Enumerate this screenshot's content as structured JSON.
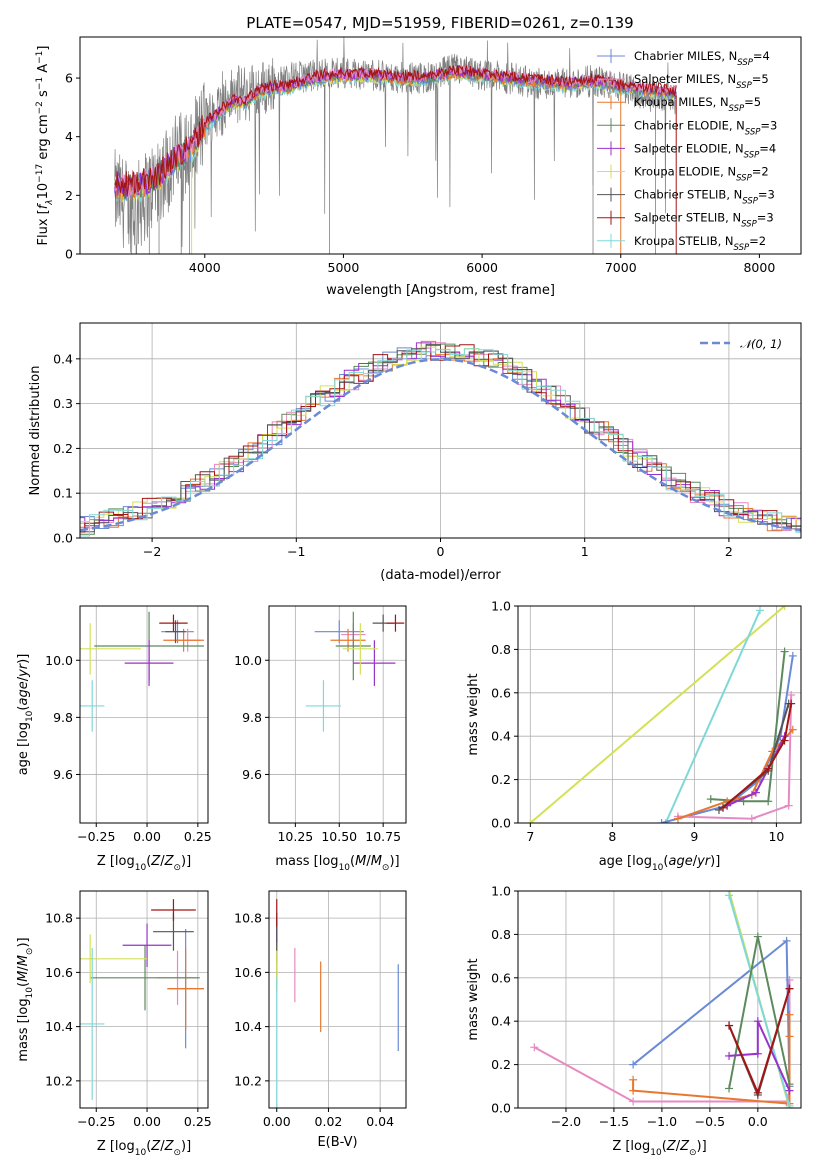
{
  "page": {
    "title": "PLATE=0547, MJD=51959, FIBERID=0261, z=0.139"
  },
  "colors": {
    "chabrier_miles": "#6a8ad6",
    "salpeter_miles": "#e78ac3",
    "kroupa_miles": "#e8772e",
    "chabrier_elodie": "#5d8a5d",
    "salpeter_elodie": "#9932cc",
    "kroupa_elodie": "#d4e157",
    "chabrier_stelib": "#555555",
    "salpeter_stelib": "#a31515",
    "kroupa_stelib": "#7fd8d8",
    "data": "#808080",
    "normal": "#6a8ad6"
  },
  "chart_data": [
    {
      "id": "spectrum",
      "type": "line",
      "title": "PLATE=0547, MJD=51959, FIBERID=0261, z=0.139",
      "xlabel": "wavelength [Angstrom, rest frame]",
      "ylabel": "Flux [f_λ 10^-17 erg cm^-2 s^-1 A^-1]",
      "xlim": [
        3100,
        8300
      ],
      "ylim": [
        0,
        7.4
      ],
      "xticks": [
        "4000",
        "5000",
        "6000",
        "7000",
        "8000"
      ],
      "yticks": [
        "0",
        "2",
        "4",
        "6"
      ],
      "legend_position": "right",
      "legend": [
        {
          "label": "Chabrier MILES, N",
          "sub": "SSP",
          "value": "=4",
          "color": "chabrier_miles"
        },
        {
          "label": "Salpeter MILES, N",
          "sub": "SSP",
          "value": "=5",
          "color": "salpeter_miles"
        },
        {
          "label": "Kroupa MILES, N",
          "sub": "SSP",
          "value": "=5",
          "color": "kroupa_miles"
        },
        {
          "label": "Chabrier ELODIE, N",
          "sub": "SSP",
          "value": "=3",
          "color": "chabrier_elodie"
        },
        {
          "label": "Salpeter ELODIE, N",
          "sub": "SSP",
          "value": "=4",
          "color": "salpeter_elodie"
        },
        {
          "label": "Kroupa ELODIE, N",
          "sub": "SSP",
          "value": "=2",
          "color": "kroupa_elodie"
        },
        {
          "label": "Chabrier STELIB, N",
          "sub": "SSP",
          "value": "=3",
          "color": "chabrier_stelib"
        },
        {
          "label": "Salpeter STELIB, N",
          "sub": "SSP",
          "value": "=3",
          "color": "salpeter_stelib"
        },
        {
          "label": "Kroupa STELIB, N",
          "sub": "SSP",
          "value": "=2",
          "color": "kroupa_stelib"
        }
      ],
      "model_continuum": [
        [
          3350,
          2.3
        ],
        [
          3500,
          2.3
        ],
        [
          3650,
          2.6
        ],
        [
          3800,
          3.3
        ],
        [
          3900,
          3.6
        ],
        [
          4000,
          4.4
        ],
        [
          4100,
          4.8
        ],
        [
          4200,
          5.2
        ],
        [
          4300,
          5.2
        ],
        [
          4400,
          5.6
        ],
        [
          4600,
          5.7
        ],
        [
          4800,
          6.0
        ],
        [
          5000,
          6.1
        ],
        [
          5200,
          6.1
        ],
        [
          5400,
          6.0
        ],
        [
          5600,
          6.0
        ],
        [
          5800,
          6.2
        ],
        [
          6000,
          6.1
        ],
        [
          6200,
          6.0
        ],
        [
          6400,
          5.9
        ],
        [
          6600,
          5.8
        ],
        [
          6800,
          5.9
        ],
        [
          7000,
          5.7
        ],
        [
          7200,
          5.6
        ],
        [
          7400,
          5.5
        ]
      ],
      "data_continuum": [
        [
          3350,
          2.0
        ],
        [
          3500,
          1.5
        ],
        [
          3650,
          2.5
        ],
        [
          3800,
          3.3
        ],
        [
          3900,
          3.5
        ],
        [
          4000,
          4.5
        ],
        [
          4100,
          4.9
        ],
        [
          4200,
          5.4
        ],
        [
          4400,
          5.6
        ],
        [
          4600,
          6.0
        ],
        [
          4800,
          6.1
        ],
        [
          5000,
          6.2
        ],
        [
          5200,
          6.1
        ],
        [
          5400,
          6.0
        ],
        [
          5600,
          6.0
        ],
        [
          5800,
          6.3
        ],
        [
          6000,
          6.1
        ],
        [
          6200,
          6.0
        ],
        [
          6400,
          5.8
        ],
        [
          6600,
          5.8
        ],
        [
          6800,
          5.9
        ],
        [
          7000,
          5.7
        ],
        [
          7200,
          5.4
        ],
        [
          7400,
          5.3
        ]
      ]
    },
    {
      "id": "residuals",
      "type": "line",
      "xlabel": "(data-model)/error",
      "ylabel": "Normed distribution",
      "xlim": [
        -2.5,
        2.5
      ],
      "ylim": [
        0,
        0.48
      ],
      "xticks": [
        -2,
        -1,
        0,
        1,
        2
      ],
      "xticklabels": [
        "−2",
        "−1",
        "0",
        "1",
        "2"
      ],
      "yticks": [
        0.0,
        0.1,
        0.2,
        0.3,
        0.4
      ],
      "yticklabels": [
        "0.0",
        "0.1",
        "0.2",
        "0.3",
        "0.4"
      ],
      "grid": true,
      "legend_position": "top-right",
      "legend": [
        {
          "label": "𝒩(0, 1)",
          "color": "normal",
          "style": "dashed"
        }
      ],
      "bin_width": 0.1
    },
    {
      "id": "age_vs_Z",
      "type": "scatter",
      "xlabel": "Z [log10(Z/Z⊙)]",
      "ylabel": "age [log10(age/yr)]",
      "xlim": [
        -0.33,
        0.3
      ],
      "ylim": [
        9.43,
        10.19
      ],
      "xticks": [
        -0.25,
        0.0,
        0.25
      ],
      "xticklabels": [
        "−0.25",
        "0.00",
        "0.25"
      ],
      "yticks": [
        9.6,
        9.8,
        10.0
      ],
      "yticklabels": [
        "9.6",
        "9.8",
        "10.0"
      ],
      "grid": true,
      "points": [
        {
          "model": "chabrier_miles",
          "x": 0.15,
          "y": 10.1,
          "xerr": 0.08,
          "yerr": 0.04
        },
        {
          "model": "salpeter_miles",
          "x": 0.2,
          "y": 10.07,
          "xerr": 0.06,
          "yerr": 0.04
        },
        {
          "model": "kroupa_miles",
          "x": 0.18,
          "y": 10.07,
          "xerr": 0.1,
          "yerr": 0.04
        },
        {
          "model": "chabrier_elodie",
          "x": 0.01,
          "y": 10.05,
          "xerr": 0.27,
          "yerr": 0.12
        },
        {
          "model": "salpeter_elodie",
          "x": 0.01,
          "y": 9.99,
          "xerr": 0.12,
          "yerr": 0.08
        },
        {
          "model": "kroupa_elodie",
          "x": -0.28,
          "y": 10.04,
          "xerr": 0.25,
          "yerr": 0.09
        },
        {
          "model": "chabrier_stelib",
          "x": 0.14,
          "y": 10.1,
          "xerr": 0.05,
          "yerr": 0.04
        },
        {
          "model": "salpeter_stelib",
          "x": 0.13,
          "y": 10.13,
          "xerr": 0.07,
          "yerr": 0.03
        },
        {
          "model": "kroupa_stelib",
          "x": -0.27,
          "y": 9.84,
          "xerr": 0.06,
          "yerr": 0.09
        }
      ]
    },
    {
      "id": "age_vs_mass",
      "type": "scatter",
      "xlabel": "mass [log10(M/M⊙)]",
      "ylabel": "",
      "xlim": [
        10.1,
        10.88
      ],
      "ylim": [
        9.43,
        10.19
      ],
      "xticks": [
        10.25,
        10.5,
        10.75
      ],
      "xticklabels": [
        "10.25",
        "10.50",
        "10.75"
      ],
      "yticks": [
        9.6,
        9.8,
        10.0
      ],
      "yticklabels": [
        "9.6",
        "9.8",
        "10.0"
      ],
      "grid": true,
      "points": [
        {
          "model": "chabrier_miles",
          "x": 10.5,
          "y": 10.1,
          "xerr": 0.14,
          "yerr": 0.04
        },
        {
          "model": "salpeter_miles",
          "x": 10.58,
          "y": 10.09,
          "xerr": 0.07,
          "yerr": 0.04
        },
        {
          "model": "kroupa_miles",
          "x": 10.55,
          "y": 10.07,
          "xerr": 0.1,
          "yerr": 0.04
        },
        {
          "model": "chabrier_elodie",
          "x": 10.58,
          "y": 10.05,
          "xerr": 0.1,
          "yerr": 0.12
        },
        {
          "model": "salpeter_elodie",
          "x": 10.7,
          "y": 9.99,
          "xerr": 0.12,
          "yerr": 0.08
        },
        {
          "model": "kroupa_elodie",
          "x": 10.62,
          "y": 10.04,
          "xerr": 0.1,
          "yerr": 0.09
        },
        {
          "model": "chabrier_stelib",
          "x": 10.75,
          "y": 10.13,
          "xerr": 0.06,
          "yerr": 0.03
        },
        {
          "model": "salpeter_stelib",
          "x": 10.82,
          "y": 10.13,
          "xerr": 0.05,
          "yerr": 0.03
        },
        {
          "model": "kroupa_stelib",
          "x": 10.41,
          "y": 9.84,
          "xerr": 0.1,
          "yerr": 0.09
        }
      ]
    },
    {
      "id": "weight_vs_age",
      "type": "line",
      "xlabel": "age [log10(age/yr)]",
      "ylabel": "mass weight",
      "xlim": [
        6.85,
        10.3
      ],
      "ylim": [
        0,
        1.0
      ],
      "xticks": [
        7,
        8,
        9,
        10
      ],
      "xticklabels": [
        "7",
        "8",
        "9",
        "10"
      ],
      "yticks": [
        0.0,
        0.2,
        0.4,
        0.6,
        0.8,
        1.0
      ],
      "yticklabels": [
        "0.0",
        "0.2",
        "0.4",
        "0.6",
        "0.8",
        "1.0"
      ],
      "grid": true,
      "series": [
        {
          "model": "kroupa_elodie",
          "x": [
            7.0,
            10.1
          ],
          "y": [
            0.0,
            1.0
          ]
        },
        {
          "model": "kroupa_stelib",
          "x": [
            8.65,
            9.8
          ],
          "y": [
            0.0,
            0.98
          ]
        },
        {
          "model": "chabrier_miles",
          "x": [
            8.6,
            9.4,
            9.8,
            10.05,
            10.2
          ],
          "y": [
            0.0,
            0.08,
            0.2,
            0.4,
            0.77
          ]
        },
        {
          "model": "chabrier_elodie",
          "x": [
            9.2,
            9.6,
            9.9,
            10.1
          ],
          "y": [
            0.11,
            0.1,
            0.1,
            0.79
          ]
        },
        {
          "model": "salpeter_miles",
          "x": [
            8.8,
            9.7,
            10.15,
            10.18
          ],
          "y": [
            0.03,
            0.02,
            0.08,
            0.59
          ]
        },
        {
          "model": "kroupa_miles",
          "x": [
            8.8,
            9.4,
            9.7,
            9.95,
            10.2
          ],
          "y": [
            0.02,
            0.1,
            0.13,
            0.33,
            0.43
          ]
        },
        {
          "model": "salpeter_elodie",
          "x": [
            9.4,
            9.75,
            9.9,
            10.1
          ],
          "y": [
            0.08,
            0.14,
            0.25,
            0.4
          ]
        },
        {
          "model": "chabrier_stelib",
          "x": [
            9.3,
            9.9,
            10.15
          ],
          "y": [
            0.06,
            0.24,
            0.55
          ]
        },
        {
          "model": "salpeter_stelib",
          "x": [
            9.35,
            9.9,
            10.1,
            10.18
          ],
          "y": [
            0.07,
            0.25,
            0.38,
            0.55
          ]
        }
      ]
    },
    {
      "id": "mass_vs_Z",
      "type": "scatter",
      "xlabel": "Z [log10(Z/Z⊙)]",
      "ylabel": "mass [log10(M/M⊙)]",
      "xlim": [
        -0.33,
        0.3
      ],
      "ylim": [
        10.1,
        10.9
      ],
      "xticks": [
        -0.25,
        0.0,
        0.25
      ],
      "xticklabels": [
        "−0.25",
        "0.00",
        "0.25"
      ],
      "yticks": [
        10.2,
        10.4,
        10.6,
        10.8
      ],
      "yticklabels": [
        "10.2",
        "10.4",
        "10.6",
        "10.8"
      ],
      "grid": true,
      "points": [
        {
          "model": "chabrier_miles",
          "x": 0.19,
          "y": 10.54,
          "xerr": 0.09,
          "yerr": 0.22
        },
        {
          "model": "salpeter_miles",
          "x": 0.15,
          "y": 10.58,
          "xerr": 0.1,
          "yerr": 0.1
        },
        {
          "model": "kroupa_miles",
          "x": 0.19,
          "y": 10.54,
          "xerr": 0.09,
          "yerr": 0.15
        },
        {
          "model": "chabrier_elodie",
          "x": -0.01,
          "y": 10.58,
          "xerr": 0.27,
          "yerr": 0.12
        },
        {
          "model": "salpeter_elodie",
          "x": 0.0,
          "y": 10.7,
          "xerr": 0.12,
          "yerr": 0.08
        },
        {
          "model": "kroupa_elodie",
          "x": -0.28,
          "y": 10.65,
          "xerr": 0.28,
          "yerr": 0.09
        },
        {
          "model": "chabrier_stelib",
          "x": 0.13,
          "y": 10.75,
          "xerr": 0.1,
          "yerr": 0.07
        },
        {
          "model": "salpeter_stelib",
          "x": 0.13,
          "y": 10.83,
          "xerr": 0.11,
          "yerr": 0.04
        },
        {
          "model": "kroupa_stelib",
          "x": -0.27,
          "y": 10.41,
          "xerr": 0.06,
          "yerr": 0.28
        }
      ]
    },
    {
      "id": "mass_vs_EBV",
      "type": "scatter",
      "xlabel": "E(B-V)",
      "ylabel": "",
      "xlim": [
        -0.003,
        0.05
      ],
      "ylim": [
        10.1,
        10.9
      ],
      "xticks": [
        0.0,
        0.02,
        0.04
      ],
      "xticklabels": [
        "0.00",
        "0.02",
        "0.04"
      ],
      "yticks": [
        10.2,
        10.4,
        10.6,
        10.8
      ],
      "yticklabels": [
        "10.2",
        "10.4",
        "10.6",
        "10.8"
      ],
      "grid": true,
      "points": [
        {
          "model": "chabrier_miles",
          "x": 0.047,
          "y": 10.47,
          "yerr": 0.16
        },
        {
          "model": "salpeter_miles",
          "x": 0.007,
          "y": 10.59,
          "yerr": 0.1
        },
        {
          "model": "kroupa_miles",
          "x": 0.017,
          "y": 10.51,
          "yerr": 0.13
        },
        {
          "model": "chabrier_elodie",
          "x": 0.0,
          "y": 10.65,
          "yerr": 0.12
        },
        {
          "model": "salpeter_elodie",
          "x": 0.0,
          "y": 10.72,
          "yerr": 0.08
        },
        {
          "model": "kroupa_elodie",
          "x": 0.0,
          "y": 10.62,
          "yerr": 0.09
        },
        {
          "model": "chabrier_stelib",
          "x": 0.0,
          "y": 10.75,
          "yerr": 0.07
        },
        {
          "model": "salpeter_stelib",
          "x": 0.0,
          "y": 10.82,
          "yerr": 0.05
        },
        {
          "model": "kroupa_stelib",
          "x": 0.0,
          "y": 10.3,
          "yerr": 0.28
        }
      ]
    },
    {
      "id": "weight_vs_Z",
      "type": "line",
      "xlabel": "Z [log10(Z/Z⊙)]",
      "ylabel": "mass weight",
      "xlim": [
        -2.5,
        0.45
      ],
      "ylim": [
        0,
        1.0
      ],
      "xticks": [
        -2.0,
        -1.5,
        -1.0,
        -0.5,
        0.0
      ],
      "xticklabels": [
        "−2.0",
        "−1.5",
        "−1.0",
        "−0.5",
        "0.0"
      ],
      "yticks": [
        0.0,
        0.2,
        0.4,
        0.6,
        0.8,
        1.0
      ],
      "yticklabels": [
        "0.0",
        "0.2",
        "0.4",
        "0.6",
        "0.8",
        "1.0"
      ],
      "grid": true,
      "series": [
        {
          "model": "salpeter_miles",
          "x": [
            -2.33,
            -1.3,
            0.3,
            0.33,
            0.33
          ],
          "y": [
            0.28,
            0.03,
            0.03,
            0.08,
            0.59
          ]
        },
        {
          "model": "chabrier_miles",
          "x": [
            -1.3,
            0.3,
            0.33,
            0.33
          ],
          "y": [
            0.2,
            0.77,
            0.1,
            0.0
          ]
        },
        {
          "model": "kroupa_miles",
          "x": [
            -1.3,
            -1.3,
            0.33,
            0.33,
            0.33
          ],
          "y": [
            0.13,
            0.08,
            0.02,
            0.33,
            0.43
          ]
        },
        {
          "model": "kroupa_elodie",
          "x": [
            -0.3,
            0.33
          ],
          "y": [
            1.0,
            0.0
          ]
        },
        {
          "model": "kroupa_stelib",
          "x": [
            -0.3,
            0.33
          ],
          "y": [
            0.98,
            0.01
          ]
        },
        {
          "model": "chabrier_elodie",
          "x": [
            -0.3,
            0.0,
            0.33
          ],
          "y": [
            0.09,
            0.79,
            0.11
          ]
        },
        {
          "model": "salpeter_elodie",
          "x": [
            -0.3,
            0.0,
            0.0,
            0.33
          ],
          "y": [
            0.24,
            0.25,
            0.4,
            0.08
          ]
        },
        {
          "model": "chabrier_stelib",
          "x": [
            -0.3,
            0.0,
            0.33
          ],
          "y": [
            0.38,
            0.06,
            0.55
          ]
        },
        {
          "model": "salpeter_stelib",
          "x": [
            -0.3,
            0.0,
            0.33
          ],
          "y": [
            0.38,
            0.07,
            0.55
          ]
        }
      ]
    }
  ]
}
